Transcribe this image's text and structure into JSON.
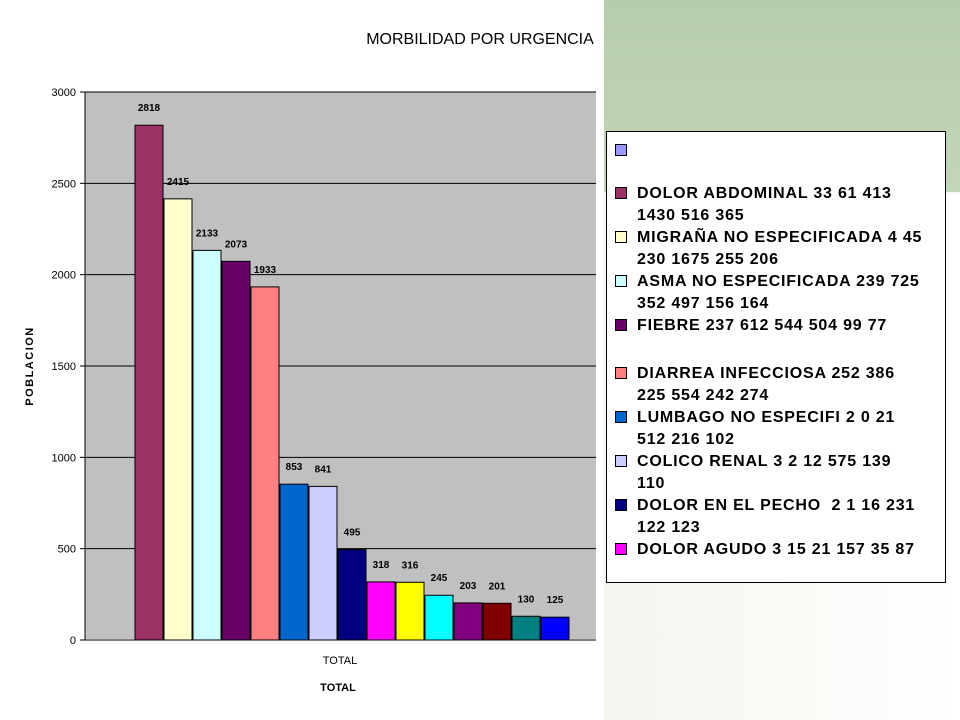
{
  "chart_data": {
    "type": "bar",
    "title": "MORBILIDAD POR URGENCIA",
    "ylabel": "POBLACION",
    "xlabel": "TOTAL",
    "categories": [
      "TOTAL"
    ],
    "category_label": "TOTAL",
    "ylim": [
      0,
      3000
    ],
    "yticks": [
      "3000",
      "2500",
      "2000",
      "1500",
      "1000",
      "500",
      "0"
    ],
    "ytick_values": [
      3000,
      2500,
      2000,
      1500,
      1000,
      500,
      0
    ],
    "grid": true,
    "legend_position": "right",
    "series": [
      {
        "values": [
          2818
        ],
        "label": "2818",
        "color": "#993366"
      },
      {
        "values": [
          2415
        ],
        "label": "2415",
        "color": "#ffffcc"
      },
      {
        "values": [
          2133
        ],
        "label": "2133",
        "color": "#ccffff"
      },
      {
        "values": [
          2073
        ],
        "label": "2073",
        "color": "#660066"
      },
      {
        "values": [
          1933
        ],
        "label": "1933",
        "color": "#ff8080"
      },
      {
        "values": [
          853
        ],
        "label": "853",
        "color": "#0066cc"
      },
      {
        "values": [
          841
        ],
        "label": "841",
        "color": "#ccccff"
      },
      {
        "values": [
          495
        ],
        "label": "495",
        "color": "#000080"
      },
      {
        "values": [
          318
        ],
        "label": "318",
        "color": "#ff00ff"
      },
      {
        "values": [
          316
        ],
        "label": "316",
        "color": "#ffff00"
      },
      {
        "values": [
          245
        ],
        "label": "245",
        "color": "#00ffff"
      },
      {
        "values": [
          203
        ],
        "label": "203",
        "color": "#800080"
      },
      {
        "values": [
          201
        ],
        "label": "201",
        "color": "#800000"
      },
      {
        "values": [
          130
        ],
        "label": "130",
        "color": "#008080"
      },
      {
        "values": [
          125
        ],
        "label": "125",
        "color": "#0000ff"
      }
    ],
    "legend": [
      {
        "text": "",
        "color": "#9999ff"
      },
      {
        "text": "DOLOR ABDOMINAL 33 61 413\n1430 516 365",
        "color": "#993366"
      },
      {
        "text": "MIGRAÑA NO ESPECIFICADA 4 45\n230 1675 255 206",
        "color": "#ffffcc"
      },
      {
        "text": "ASMA NO ESPECIFICADA 239 725\n352 497 156 164",
        "color": "#ccffff"
      },
      {
        "text": "FIEBRE 237 612 544 504 99 77",
        "color": "#660066"
      },
      {
        "text": "DIARREA INFECCIOSA 252 386\n225 554 242 274",
        "color": "#ff8080"
      },
      {
        "text": "LUMBAGO NO ESPECIFI 2 0 21\n512 216 102",
        "color": "#0066cc"
      },
      {
        "text": "COLICO RENAL 3 2 12 575 139\n110",
        "color": "#ccccff"
      },
      {
        "text": "DOLOR EN EL PECHO  2 1 16 231\n122 123",
        "color": "#000080"
      },
      {
        "text": "DOLOR AGUDO 3 15 21 157 35 87",
        "color": "#ff00ff"
      }
    ]
  }
}
